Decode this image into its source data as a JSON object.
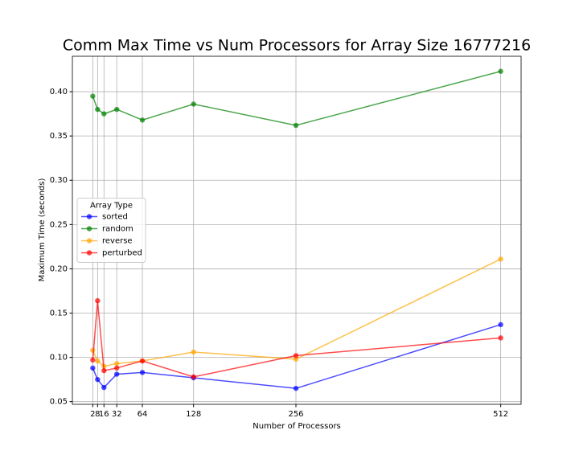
{
  "chart_data": {
    "type": "line",
    "title": "Comm Max Time vs Num Processors for Array Size 16777216",
    "x_label": "Number of Processors",
    "y_label": "Maximum Time (seconds)",
    "x": [
      2,
      8,
      16,
      32,
      64,
      128,
      256,
      512
    ],
    "series": [
      {
        "name": "sorted",
        "color": "#0000ff",
        "values": [
          0.088,
          0.075,
          0.066,
          0.081,
          0.083,
          0.077,
          0.065,
          0.137
        ]
      },
      {
        "name": "random",
        "color": "#008000",
        "values": [
          0.395,
          0.38,
          0.375,
          0.38,
          0.368,
          0.386,
          0.362,
          0.423
        ]
      },
      {
        "name": "reverse",
        "color": "#ffa500",
        "values": [
          0.108,
          0.096,
          0.09,
          0.093,
          0.096,
          0.106,
          0.098,
          0.211
        ]
      },
      {
        "name": "perturbed",
        "color": "#ff0000",
        "values": [
          0.097,
          0.164,
          0.085,
          0.088,
          0.096,
          0.078,
          0.102,
          0.122
        ]
      }
    ],
    "legend_title": "Array Type",
    "legend_position": "center left",
    "xlim": [
      -23.5,
      537.5
    ],
    "xticks": [
      2,
      8,
      16,
      32,
      64,
      128,
      256,
      512
    ],
    "ylim": [
      0.047,
      0.44
    ],
    "yticks": [
      {
        "value": 0.05,
        "label": "0.05"
      },
      {
        "value": 0.1,
        "label": "0.10"
      },
      {
        "value": 0.15,
        "label": "0.15"
      },
      {
        "value": 0.2,
        "label": "0.20"
      },
      {
        "value": 0.25,
        "label": "0.25"
      },
      {
        "value": 0.3,
        "label": "0.30"
      },
      {
        "value": 0.35,
        "label": "0.35"
      },
      {
        "value": 0.4,
        "label": "0.40"
      }
    ],
    "grid": true
  }
}
